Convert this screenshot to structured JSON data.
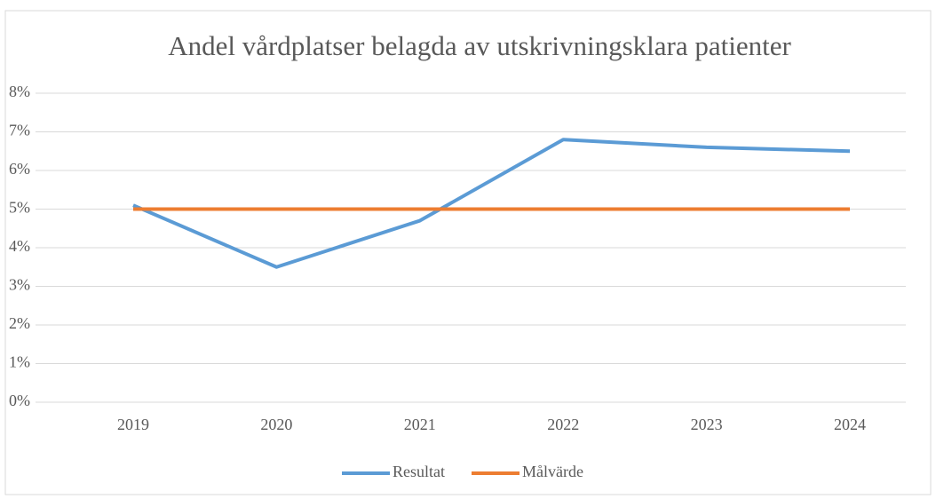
{
  "chart_data": {
    "type": "line",
    "title": "Andel vårdplatser belagda av utskrivningsklara patienter",
    "categories": [
      "2019",
      "2020",
      "2021",
      "2022",
      "2023",
      "2024"
    ],
    "series": [
      {
        "name": "Resultat",
        "color": "#5b9bd5",
        "values": [
          5.1,
          3.5,
          4.7,
          6.8,
          6.6,
          6.5
        ]
      },
      {
        "name": "Målvärde",
        "color": "#ed7d31",
        "values": [
          5,
          5,
          5,
          5,
          5,
          5
        ]
      }
    ],
    "ylim": [
      0,
      8
    ],
    "yticks": [
      {
        "value": 0,
        "label": "0%"
      },
      {
        "value": 1,
        "label": "1%"
      },
      {
        "value": 2,
        "label": "2%"
      },
      {
        "value": 3,
        "label": "3%"
      },
      {
        "value": 4,
        "label": "4%"
      },
      {
        "value": 5,
        "label": "5%"
      },
      {
        "value": 6,
        "label": "6%"
      },
      {
        "value": 7,
        "label": "7%"
      },
      {
        "value": 8,
        "label": "8%"
      }
    ],
    "grid": true,
    "legend": "bottom"
  }
}
